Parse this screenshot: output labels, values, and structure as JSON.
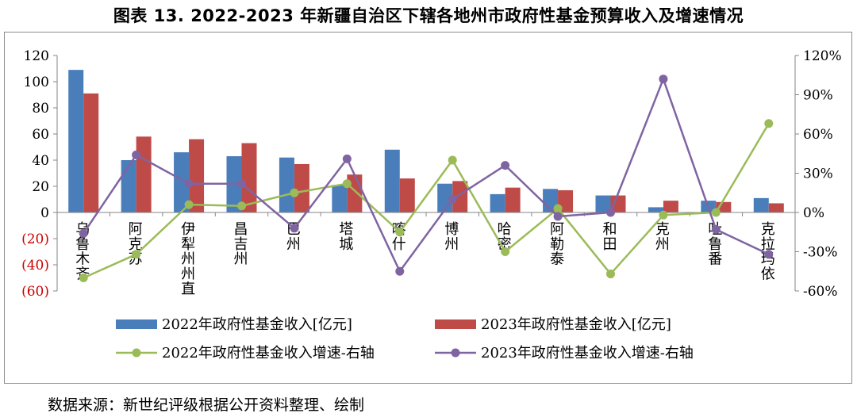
{
  "title": "图表 13. 2022-2023 年新疆自治区下辖各地州市政府性基金预算收入及增速情况",
  "source": "数据来源：新世纪评级根据公开资料整理、绘制",
  "colors": {
    "bar2022": "#4a7ebb",
    "bar2023": "#be4b48",
    "line2022": "#9bbb59",
    "line2023": "#7f64a2",
    "negative_tick": "#cc0000"
  },
  "chart_data": {
    "type": "bar",
    "categories": [
      "乌鲁木齐",
      "阿克苏",
      "伊犁州州直",
      "昌吉州",
      "巴州",
      "塔城",
      "喀什",
      "博州",
      "哈密",
      "阿勒泰",
      "和田",
      "克州",
      "吐鲁番",
      "克拉玛依"
    ],
    "series": [
      {
        "name": "2022年政府性基金收入[亿元]",
        "type": "bar",
        "axis": "left",
        "values": [
          109,
          40,
          46,
          43,
          42,
          21,
          48,
          22,
          14,
          18,
          13,
          4,
          9,
          11
        ]
      },
      {
        "name": "2023年政府性基金收入[亿元]",
        "type": "bar",
        "axis": "left",
        "values": [
          91,
          58,
          56,
          53,
          37,
          29,
          26,
          24,
          19,
          17,
          13,
          9,
          8,
          7
        ]
      },
      {
        "name": "2022年政府性基金收入增速-右轴",
        "type": "line",
        "axis": "right",
        "values": [
          -50,
          -32,
          6,
          5,
          15,
          22,
          -15,
          40,
          -30,
          3,
          -47,
          -2,
          0,
          68
        ]
      },
      {
        "name": "2023年政府性基金收入增速-右轴",
        "type": "line",
        "axis": "right",
        "values": [
          -16,
          44,
          22,
          22,
          -12,
          41,
          -45,
          10,
          36,
          -3,
          0,
          102,
          -13,
          -32
        ]
      }
    ],
    "left_axis": {
      "ylim": [
        -60,
        120
      ],
      "ticks": [
        120,
        100,
        80,
        60,
        40,
        20,
        0,
        -20,
        -40,
        -60
      ],
      "tick_labels": [
        "120",
        "100",
        "80",
        "60",
        "40",
        "20",
        "0",
        "(20)",
        "(40)",
        "(60)"
      ]
    },
    "right_axis": {
      "ylim": [
        -60,
        120
      ],
      "ticks": [
        120,
        90,
        60,
        30,
        0,
        -30,
        -60
      ],
      "tick_labels": [
        "120%",
        "90%",
        "60%",
        "30%",
        "0%",
        "-30%",
        "-60%"
      ]
    },
    "grid": false,
    "legend_position": "bottom",
    "legend": [
      "2022年政府性基金收入[亿元]",
      "2023年政府性基金收入[亿元]",
      "2022年政府性基金收入增速-右轴",
      "2023年政府性基金收入增速-右轴"
    ]
  }
}
